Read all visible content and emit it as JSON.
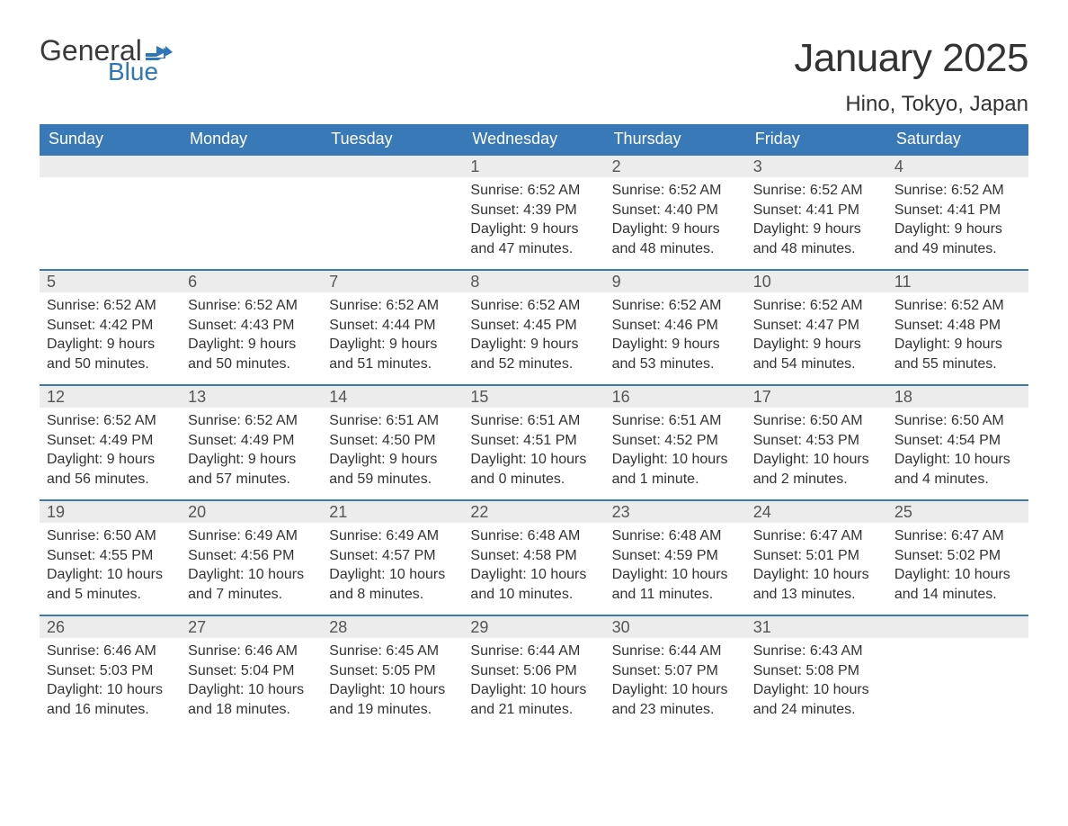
{
  "logo": {
    "word1": "General",
    "word2": "Blue",
    "color1": "#3a3a3a",
    "color2": "#2f77b8"
  },
  "title": "January 2025",
  "location": "Hino, Tokyo, Japan",
  "columns": [
    "Sunday",
    "Monday",
    "Tuesday",
    "Wednesday",
    "Thursday",
    "Friday",
    "Saturday"
  ],
  "header_bg": "#3a79b7",
  "header_fg": "#ffffff",
  "daynum_bg": "#ececec",
  "row_divider_color": "#3a79b7",
  "text_color": "#333333",
  "weeks": [
    [
      null,
      null,
      null,
      {
        "day": "1",
        "sunrise": "Sunrise: 6:52 AM",
        "sunset": "Sunset: 4:39 PM",
        "daylight": "Daylight: 9 hours and 47 minutes."
      },
      {
        "day": "2",
        "sunrise": "Sunrise: 6:52 AM",
        "sunset": "Sunset: 4:40 PM",
        "daylight": "Daylight: 9 hours and 48 minutes."
      },
      {
        "day": "3",
        "sunrise": "Sunrise: 6:52 AM",
        "sunset": "Sunset: 4:41 PM",
        "daylight": "Daylight: 9 hours and 48 minutes."
      },
      {
        "day": "4",
        "sunrise": "Sunrise: 6:52 AM",
        "sunset": "Sunset: 4:41 PM",
        "daylight": "Daylight: 9 hours and 49 minutes."
      }
    ],
    [
      {
        "day": "5",
        "sunrise": "Sunrise: 6:52 AM",
        "sunset": "Sunset: 4:42 PM",
        "daylight": "Daylight: 9 hours and 50 minutes."
      },
      {
        "day": "6",
        "sunrise": "Sunrise: 6:52 AM",
        "sunset": "Sunset: 4:43 PM",
        "daylight": "Daylight: 9 hours and 50 minutes."
      },
      {
        "day": "7",
        "sunrise": "Sunrise: 6:52 AM",
        "sunset": "Sunset: 4:44 PM",
        "daylight": "Daylight: 9 hours and 51 minutes."
      },
      {
        "day": "8",
        "sunrise": "Sunrise: 6:52 AM",
        "sunset": "Sunset: 4:45 PM",
        "daylight": "Daylight: 9 hours and 52 minutes."
      },
      {
        "day": "9",
        "sunrise": "Sunrise: 6:52 AM",
        "sunset": "Sunset: 4:46 PM",
        "daylight": "Daylight: 9 hours and 53 minutes."
      },
      {
        "day": "10",
        "sunrise": "Sunrise: 6:52 AM",
        "sunset": "Sunset: 4:47 PM",
        "daylight": "Daylight: 9 hours and 54 minutes."
      },
      {
        "day": "11",
        "sunrise": "Sunrise: 6:52 AM",
        "sunset": "Sunset: 4:48 PM",
        "daylight": "Daylight: 9 hours and 55 minutes."
      }
    ],
    [
      {
        "day": "12",
        "sunrise": "Sunrise: 6:52 AM",
        "sunset": "Sunset: 4:49 PM",
        "daylight": "Daylight: 9 hours and 56 minutes."
      },
      {
        "day": "13",
        "sunrise": "Sunrise: 6:52 AM",
        "sunset": "Sunset: 4:49 PM",
        "daylight": "Daylight: 9 hours and 57 minutes."
      },
      {
        "day": "14",
        "sunrise": "Sunrise: 6:51 AM",
        "sunset": "Sunset: 4:50 PM",
        "daylight": "Daylight: 9 hours and 59 minutes."
      },
      {
        "day": "15",
        "sunrise": "Sunrise: 6:51 AM",
        "sunset": "Sunset: 4:51 PM",
        "daylight": "Daylight: 10 hours and 0 minutes."
      },
      {
        "day": "16",
        "sunrise": "Sunrise: 6:51 AM",
        "sunset": "Sunset: 4:52 PM",
        "daylight": "Daylight: 10 hours and 1 minute."
      },
      {
        "day": "17",
        "sunrise": "Sunrise: 6:50 AM",
        "sunset": "Sunset: 4:53 PM",
        "daylight": "Daylight: 10 hours and 2 minutes."
      },
      {
        "day": "18",
        "sunrise": "Sunrise: 6:50 AM",
        "sunset": "Sunset: 4:54 PM",
        "daylight": "Daylight: 10 hours and 4 minutes."
      }
    ],
    [
      {
        "day": "19",
        "sunrise": "Sunrise: 6:50 AM",
        "sunset": "Sunset: 4:55 PM",
        "daylight": "Daylight: 10 hours and 5 minutes."
      },
      {
        "day": "20",
        "sunrise": "Sunrise: 6:49 AM",
        "sunset": "Sunset: 4:56 PM",
        "daylight": "Daylight: 10 hours and 7 minutes."
      },
      {
        "day": "21",
        "sunrise": "Sunrise: 6:49 AM",
        "sunset": "Sunset: 4:57 PM",
        "daylight": "Daylight: 10 hours and 8 minutes."
      },
      {
        "day": "22",
        "sunrise": "Sunrise: 6:48 AM",
        "sunset": "Sunset: 4:58 PM",
        "daylight": "Daylight: 10 hours and 10 minutes."
      },
      {
        "day": "23",
        "sunrise": "Sunrise: 6:48 AM",
        "sunset": "Sunset: 4:59 PM",
        "daylight": "Daylight: 10 hours and 11 minutes."
      },
      {
        "day": "24",
        "sunrise": "Sunrise: 6:47 AM",
        "sunset": "Sunset: 5:01 PM",
        "daylight": "Daylight: 10 hours and 13 minutes."
      },
      {
        "day": "25",
        "sunrise": "Sunrise: 6:47 AM",
        "sunset": "Sunset: 5:02 PM",
        "daylight": "Daylight: 10 hours and 14 minutes."
      }
    ],
    [
      {
        "day": "26",
        "sunrise": "Sunrise: 6:46 AM",
        "sunset": "Sunset: 5:03 PM",
        "daylight": "Daylight: 10 hours and 16 minutes."
      },
      {
        "day": "27",
        "sunrise": "Sunrise: 6:46 AM",
        "sunset": "Sunset: 5:04 PM",
        "daylight": "Daylight: 10 hours and 18 minutes."
      },
      {
        "day": "28",
        "sunrise": "Sunrise: 6:45 AM",
        "sunset": "Sunset: 5:05 PM",
        "daylight": "Daylight: 10 hours and 19 minutes."
      },
      {
        "day": "29",
        "sunrise": "Sunrise: 6:44 AM",
        "sunset": "Sunset: 5:06 PM",
        "daylight": "Daylight: 10 hours and 21 minutes."
      },
      {
        "day": "30",
        "sunrise": "Sunrise: 6:44 AM",
        "sunset": "Sunset: 5:07 PM",
        "daylight": "Daylight: 10 hours and 23 minutes."
      },
      {
        "day": "31",
        "sunrise": "Sunrise: 6:43 AM",
        "sunset": "Sunset: 5:08 PM",
        "daylight": "Daylight: 10 hours and 24 minutes."
      },
      null
    ]
  ]
}
